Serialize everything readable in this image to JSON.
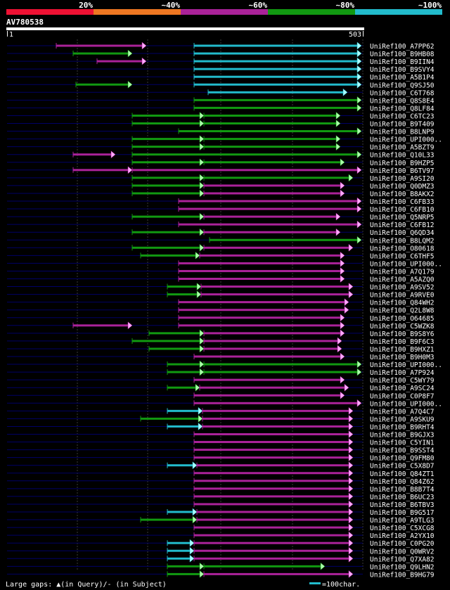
{
  "legend": {
    "labels": [
      "20%",
      "~40%",
      "~60%",
      "~80%",
      "~100%"
    ],
    "colors": [
      "#ee1133",
      "#ee7722",
      "#aa2299",
      "#119911",
      "#22bbcc"
    ]
  },
  "query": {
    "name": "AV780538",
    "start_label": "1",
    "end_label": "503",
    "length": 503
  },
  "hits": [
    {
      "name": "UniRef100_A7PP62",
      "segments": [
        {
          "s": 80,
          "e": 208,
          "c": "purple"
        },
        {
          "s": 276,
          "e": 514,
          "c": "cyan"
        }
      ]
    },
    {
      "name": "UniRef100_B9HB08",
      "segments": [
        {
          "s": 104,
          "e": 188,
          "c": "green"
        },
        {
          "s": 276,
          "e": 514,
          "c": "cyan"
        }
      ]
    },
    {
      "name": "UniRef100_B9IIN4",
      "segments": [
        {
          "s": 138,
          "e": 208,
          "c": "purple"
        },
        {
          "s": 276,
          "e": 514,
          "c": "cyan"
        }
      ]
    },
    {
      "name": "UniRef100_B9SVY4",
      "segments": [
        {
          "s": 276,
          "e": 514,
          "c": "cyan"
        }
      ]
    },
    {
      "name": "UniRef100_A5B1P4",
      "segments": [
        {
          "s": 276,
          "e": 514,
          "c": "cyan"
        }
      ]
    },
    {
      "name": "UniRef100_Q9SJ50",
      "segments": [
        {
          "s": 108,
          "e": 188,
          "c": "green"
        },
        {
          "s": 276,
          "e": 514,
          "c": "cyan"
        }
      ]
    },
    {
      "name": "UniRef100_C6T768",
      "segments": [
        {
          "s": 296,
          "e": 494,
          "c": "cyan"
        }
      ]
    },
    {
      "name": "UniRef100_Q8S8E4",
      "segments": [
        {
          "s": 276,
          "e": 514,
          "c": "green"
        }
      ]
    },
    {
      "name": "UniRef100_Q8LF84",
      "segments": [
        {
          "s": 276,
          "e": 514,
          "c": "green"
        }
      ]
    },
    {
      "name": "UniRef100_C6TC23",
      "segments": [
        {
          "s": 188,
          "e": 290,
          "c": "green"
        },
        {
          "s": 290,
          "e": 484,
          "c": "green"
        }
      ]
    },
    {
      "name": "UniRef100_B9T409",
      "segments": [
        {
          "s": 188,
          "e": 290,
          "c": "green"
        },
        {
          "s": 290,
          "e": 484,
          "c": "green"
        }
      ]
    },
    {
      "name": "UniRef100_B8LNP9",
      "segments": [
        {
          "s": 254,
          "e": 514,
          "c": "green"
        }
      ]
    },
    {
      "name": "UniRef100_UPI000..",
      "segments": [
        {
          "s": 188,
          "e": 290,
          "c": "green"
        },
        {
          "s": 290,
          "e": 484,
          "c": "green"
        }
      ]
    },
    {
      "name": "UniRef100_A5BZT9",
      "segments": [
        {
          "s": 188,
          "e": 290,
          "c": "green"
        },
        {
          "s": 290,
          "e": 484,
          "c": "green"
        }
      ]
    },
    {
      "name": "UniRef100_Q10L33",
      "segments": [
        {
          "s": 104,
          "e": 164,
          "c": "purple"
        },
        {
          "s": 188,
          "e": 514,
          "c": "green"
        }
      ]
    },
    {
      "name": "UniRef100_B9HZP5",
      "segments": [
        {
          "s": 188,
          "e": 290,
          "c": "green"
        },
        {
          "s": 290,
          "e": 490,
          "c": "green"
        }
      ]
    },
    {
      "name": "UniRef100_B6TV97",
      "segments": [
        {
          "s": 104,
          "e": 188,
          "c": "purple"
        },
        {
          "s": 188,
          "e": 514,
          "c": "purple"
        }
      ]
    },
    {
      "name": "UniRef100_A9SI20",
      "segments": [
        {
          "s": 188,
          "e": 290,
          "c": "green"
        },
        {
          "s": 290,
          "e": 502,
          "c": "green"
        }
      ]
    },
    {
      "name": "UniRef100_Q0DMZ3",
      "segments": [
        {
          "s": 188,
          "e": 290,
          "c": "green"
        },
        {
          "s": 290,
          "e": 490,
          "c": "purple"
        }
      ]
    },
    {
      "name": "UniRef100_B8AKX2",
      "segments": [
        {
          "s": 188,
          "e": 290,
          "c": "green"
        },
        {
          "s": 290,
          "e": 490,
          "c": "purple"
        }
      ]
    },
    {
      "name": "UniRef100_C6FB33",
      "segments": [
        {
          "s": 254,
          "e": 514,
          "c": "purple"
        }
      ]
    },
    {
      "name": "UniRef100_C6FB10",
      "segments": [
        {
          "s": 254,
          "e": 514,
          "c": "purple"
        }
      ]
    },
    {
      "name": "UniRef100_Q5NRP5",
      "segments": [
        {
          "s": 188,
          "e": 290,
          "c": "green"
        },
        {
          "s": 290,
          "e": 484,
          "c": "purple"
        }
      ]
    },
    {
      "name": "UniRef100_C6FB12",
      "segments": [
        {
          "s": 254,
          "e": 514,
          "c": "purple"
        }
      ]
    },
    {
      "name": "UniRef100_Q6QD34",
      "segments": [
        {
          "s": 188,
          "e": 290,
          "c": "green"
        },
        {
          "s": 290,
          "e": 484,
          "c": "purple"
        }
      ]
    },
    {
      "name": "UniRef100_B8LQM2",
      "segments": [
        {
          "s": 298,
          "e": 514,
          "c": "green"
        }
      ]
    },
    {
      "name": "UniRef100_O80618",
      "segments": [
        {
          "s": 188,
          "e": 290,
          "c": "green"
        },
        {
          "s": 290,
          "e": 502,
          "c": "purple"
        }
      ]
    },
    {
      "name": "UniRef100_C6THF5",
      "segments": [
        {
          "s": 200,
          "e": 284,
          "c": "green"
        },
        {
          "s": 284,
          "e": 490,
          "c": "purple"
        }
      ]
    },
    {
      "name": "UniRef100_UPI000..",
      "segments": [
        {
          "s": 254,
          "e": 490,
          "c": "purple"
        }
      ]
    },
    {
      "name": "UniRef100_A7Q179",
      "segments": [
        {
          "s": 254,
          "e": 490,
          "c": "purple"
        }
      ]
    },
    {
      "name": "UniRef100_A5AZQ0",
      "segments": [
        {
          "s": 254,
          "e": 490,
          "c": "purple"
        }
      ]
    },
    {
      "name": "UniRef100_A9SV52",
      "segments": [
        {
          "s": 238,
          "e": 286,
          "c": "green"
        },
        {
          "s": 286,
          "e": 502,
          "c": "purple"
        }
      ]
    },
    {
      "name": "UniRef100_A9RVE0",
      "segments": [
        {
          "s": 238,
          "e": 286,
          "c": "green"
        },
        {
          "s": 286,
          "e": 502,
          "c": "purple"
        }
      ]
    },
    {
      "name": "UniRef100_Q84WH2",
      "segments": [
        {
          "s": 254,
          "e": 496,
          "c": "purple"
        }
      ]
    },
    {
      "name": "UniRef100_Q2L8W8",
      "segments": [
        {
          "s": 254,
          "e": 496,
          "c": "purple"
        }
      ]
    },
    {
      "name": "UniRef100_O64685",
      "segments": [
        {
          "s": 254,
          "e": 490,
          "c": "purple"
        }
      ]
    },
    {
      "name": "UniRef100_C5WZK8",
      "segments": [
        {
          "s": 104,
          "e": 188,
          "c": "purple"
        },
        {
          "s": 254,
          "e": 490,
          "c": "purple"
        }
      ]
    },
    {
      "name": "UniRef100_B9S8Y6",
      "segments": [
        {
          "s": 212,
          "e": 290,
          "c": "green"
        },
        {
          "s": 290,
          "e": 490,
          "c": "purple"
        }
      ]
    },
    {
      "name": "UniRef100_B9F6C3",
      "segments": [
        {
          "s": 188,
          "e": 290,
          "c": "green"
        },
        {
          "s": 290,
          "e": 486,
          "c": "purple"
        }
      ]
    },
    {
      "name": "UniRef100_B9HXZ1",
      "segments": [
        {
          "s": 212,
          "e": 290,
          "c": "green"
        },
        {
          "s": 290,
          "e": 486,
          "c": "purple"
        }
      ]
    },
    {
      "name": "UniRef100_B9H0M3",
      "segments": [
        {
          "s": 276,
          "e": 490,
          "c": "purple"
        }
      ]
    },
    {
      "name": "UniRef100_UPI000..",
      "segments": [
        {
          "s": 238,
          "e": 290,
          "c": "green"
        },
        {
          "s": 290,
          "e": 514,
          "c": "green"
        }
      ]
    },
    {
      "name": "UniRef100_A7P924",
      "segments": [
        {
          "s": 238,
          "e": 290,
          "c": "green"
        },
        {
          "s": 290,
          "e": 514,
          "c": "green"
        }
      ]
    },
    {
      "name": "UniRef100_C5WY79",
      "segments": [
        {
          "s": 276,
          "e": 490,
          "c": "purple"
        }
      ]
    },
    {
      "name": "UniRef100_A9SC24",
      "segments": [
        {
          "s": 238,
          "e": 284,
          "c": "green"
        },
        {
          "s": 284,
          "e": 496,
          "c": "purple"
        }
      ]
    },
    {
      "name": "UniRef100_C0P8F7",
      "segments": [
        {
          "s": 276,
          "e": 490,
          "c": "purple"
        }
      ]
    },
    {
      "name": "UniRef100_UPI000..",
      "segments": [
        {
          "s": 276,
          "e": 514,
          "c": "purple"
        }
      ]
    },
    {
      "name": "UniRef100_A7Q4C7",
      "segments": [
        {
          "s": 238,
          "e": 288,
          "c": "cyan"
        },
        {
          "s": 288,
          "e": 502,
          "c": "purple"
        }
      ]
    },
    {
      "name": "UniRef100_A9SKU9",
      "segments": [
        {
          "s": 200,
          "e": 288,
          "c": "green"
        },
        {
          "s": 288,
          "e": 502,
          "c": "purple"
        }
      ]
    },
    {
      "name": "UniRef100_B9RHT4",
      "segments": [
        {
          "s": 238,
          "e": 288,
          "c": "cyan"
        },
        {
          "s": 288,
          "e": 502,
          "c": "purple"
        }
      ]
    },
    {
      "name": "UniRef100_B9GJX3",
      "segments": [
        {
          "s": 276,
          "e": 502,
          "c": "purple"
        }
      ]
    },
    {
      "name": "UniRef100_C5YIN1",
      "segments": [
        {
          "s": 276,
          "e": 502,
          "c": "purple"
        }
      ]
    },
    {
      "name": "UniRef100_B9SST4",
      "segments": [
        {
          "s": 276,
          "e": 502,
          "c": "purple"
        }
      ]
    },
    {
      "name": "UniRef100_Q9FM80",
      "segments": [
        {
          "s": 276,
          "e": 502,
          "c": "purple"
        }
      ]
    },
    {
      "name": "UniRef100_C5X8D7",
      "segments": [
        {
          "s": 238,
          "e": 280,
          "c": "cyan"
        },
        {
          "s": 280,
          "e": 502,
          "c": "purple"
        }
      ]
    },
    {
      "name": "UniRef100_Q84ZT1",
      "segments": [
        {
          "s": 276,
          "e": 502,
          "c": "purple"
        }
      ]
    },
    {
      "name": "UniRef100_Q84Z62",
      "segments": [
        {
          "s": 276,
          "e": 502,
          "c": "purple"
        }
      ]
    },
    {
      "name": "UniRef100_B8B7T4",
      "segments": [
        {
          "s": 276,
          "e": 502,
          "c": "purple"
        }
      ]
    },
    {
      "name": "UniRef100_B6UC23",
      "segments": [
        {
          "s": 276,
          "e": 502,
          "c": "purple"
        }
      ]
    },
    {
      "name": "UniRef100_B6TBV3",
      "segments": [
        {
          "s": 276,
          "e": 502,
          "c": "purple"
        }
      ]
    },
    {
      "name": "UniRef100_B9G517",
      "segments": [
        {
          "s": 238,
          "e": 280,
          "c": "cyan"
        },
        {
          "s": 280,
          "e": 502,
          "c": "purple"
        }
      ]
    },
    {
      "name": "UniRef100_A9TLG3",
      "segments": [
        {
          "s": 200,
          "e": 280,
          "c": "green"
        },
        {
          "s": 280,
          "e": 502,
          "c": "purple"
        }
      ]
    },
    {
      "name": "UniRef100_C5XCG8",
      "segments": [
        {
          "s": 276,
          "e": 502,
          "c": "purple"
        }
      ]
    },
    {
      "name": "UniRef100_A2YX10",
      "segments": [
        {
          "s": 276,
          "e": 502,
          "c": "purple"
        }
      ]
    },
    {
      "name": "UniRef100_C0PG20",
      "segments": [
        {
          "s": 238,
          "e": 276,
          "c": "cyan"
        },
        {
          "s": 276,
          "e": 502,
          "c": "purple"
        }
      ]
    },
    {
      "name": "UniRef100_Q0WRV2",
      "segments": [
        {
          "s": 238,
          "e": 276,
          "c": "cyan"
        },
        {
          "s": 276,
          "e": 502,
          "c": "purple"
        }
      ]
    },
    {
      "name": "UniRef100_Q7XA82",
      "segments": [
        {
          "s": 238,
          "e": 276,
          "c": "cyan"
        },
        {
          "s": 276,
          "e": 502,
          "c": "purple"
        }
      ]
    },
    {
      "name": "UniRef100_Q9LHN2",
      "segments": [
        {
          "s": 238,
          "e": 290,
          "c": "green"
        },
        {
          "s": 290,
          "e": 462,
          "c": "green"
        }
      ]
    },
    {
      "name": "UniRef100_B9HG79",
      "segments": [
        {
          "s": 238,
          "e": 290,
          "c": "green"
        },
        {
          "s": 290,
          "e": 502,
          "c": "purple"
        }
      ]
    }
  ],
  "footer": {
    "gaps_text": "Large gaps: ▲(in Query)/- (in Subject)",
    "scale_text": "=100char."
  },
  "palette": {
    "purple": "#aa2299",
    "green": "#119911",
    "cyan": "#22bbcc",
    "arrow_purple": "#ffaaff",
    "arrow_green": "#aaffaa",
    "arrow_cyan": "#aaffff",
    "track": "#000066"
  }
}
